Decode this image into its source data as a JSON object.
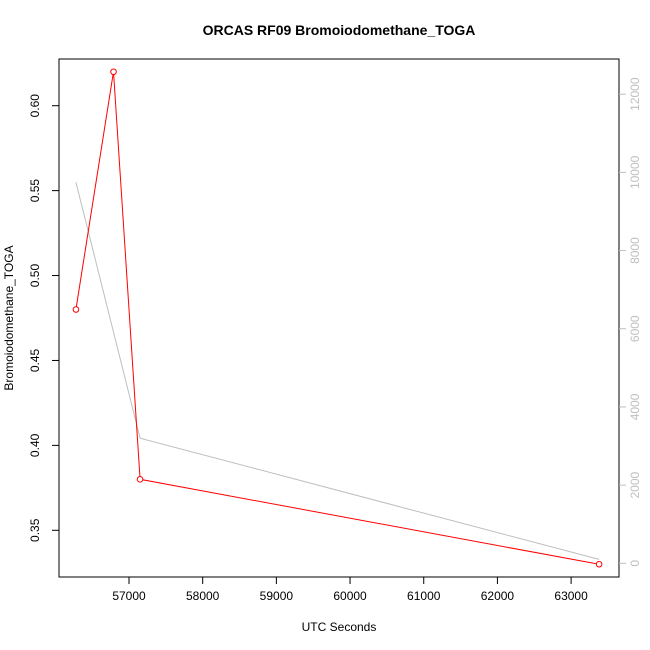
{
  "chart_data": {
    "type": "line",
    "title": "ORCAS RF09 Bromoiodomethane_TOGA",
    "xlabel": "UTC Seconds",
    "ylabel": "Bromoiodomethane_TOGA",
    "xlim": [
      56050,
      63650
    ],
    "ylim": [
      0.3225,
      0.6275
    ],
    "y2lim": [
      -350,
      12900
    ],
    "x_ticks": [
      57000,
      58000,
      59000,
      60000,
      61000,
      62000,
      63000
    ],
    "y_ticks": [
      0.35,
      0.4,
      0.45,
      0.5,
      0.55,
      0.6
    ],
    "y2_ticks": [
      0,
      2000,
      4000,
      6000,
      8000,
      10000,
      12000
    ],
    "series": [
      {
        "axis": "left",
        "color": "#ff0000",
        "markers": "open-circle",
        "points": [
          {
            "x": 56280,
            "y": 0.48
          },
          {
            "x": 56790,
            "y": 0.62
          },
          {
            "x": 57150,
            "y": 0.38
          },
          {
            "x": 63380,
            "y": 0.33
          }
        ]
      },
      {
        "axis": "right",
        "color": "#bebebe",
        "markers": "none",
        "points": [
          {
            "x": 56280,
            "y": 9750
          },
          {
            "x": 57150,
            "y": 3200
          },
          {
            "x": 63380,
            "y": 100
          }
        ]
      }
    ]
  }
}
